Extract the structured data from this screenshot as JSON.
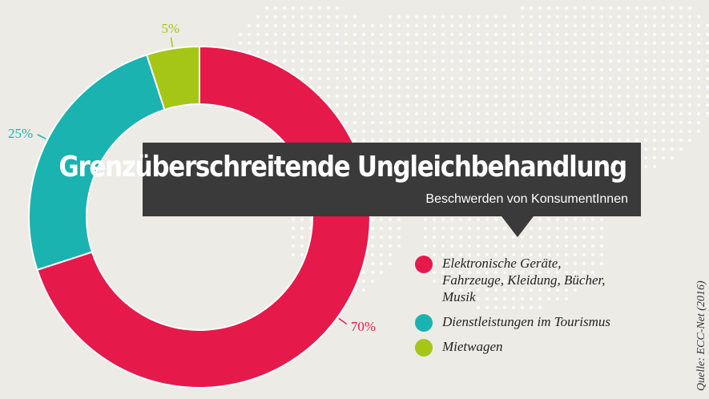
{
  "chart_data": {
    "type": "pie",
    "title": "Grenzüberschreitende Ungleichbehandlung",
    "subtitle": "Beschwerden von KonsumentInnen",
    "categories": [
      "Elektronische Geräte, Fahrzeuge, Kleidung, Bücher, Musik",
      "Dienstleistungen im Tourismus",
      "Mietwagen"
    ],
    "values": [
      70,
      25,
      5
    ],
    "value_labels": [
      "70%",
      "25%",
      "5%"
    ],
    "colors": [
      "#e5194a",
      "#1ab3b0",
      "#a5c617"
    ],
    "donut": true,
    "legend": "right"
  },
  "legend": {
    "items": [
      {
        "label_lines": [
          "Elektronische Geräte,",
          "Fahrzeuge, Kleidung, Bücher,",
          "Musik"
        ]
      },
      {
        "label_lines": [
          "Dienstleistungen im Tourismus"
        ]
      },
      {
        "label_lines": [
          "Mietwagen"
        ]
      }
    ]
  },
  "source": "Quelle: ECC-Net (2016)"
}
